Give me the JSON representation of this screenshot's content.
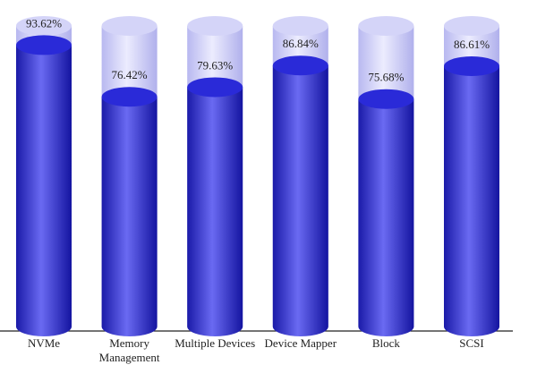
{
  "chart_data": {
    "type": "cylinder",
    "categories": [
      "NVMe",
      "Memory Management",
      "Multiple Devices",
      "Device Mapper",
      "Block",
      "SCSI"
    ],
    "values": [
      93.62,
      76.42,
      79.63,
      86.84,
      75.68,
      86.61
    ],
    "value_labels": [
      "93.62%",
      "76.42%",
      "79.63%",
      "86.84%",
      "75.68%",
      "86.61%"
    ],
    "ylim": [
      0,
      100
    ],
    "color": "#2a2ad8"
  }
}
